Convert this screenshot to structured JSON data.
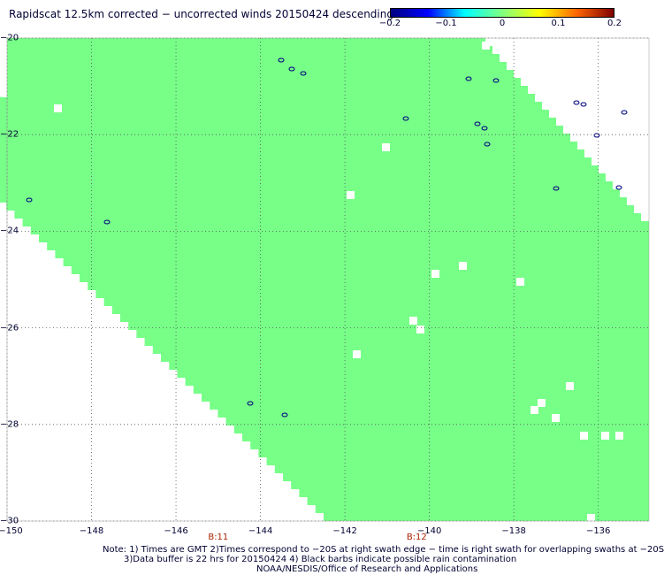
{
  "title": "Rapidscat 12.5km corrected − uncorrected winds 20150424 descending",
  "colorbar": {
    "labels": [
      "−0.2",
      "−0.1",
      "0",
      "0.1",
      "0.2"
    ],
    "values": [
      -0.2,
      -0.1,
      0,
      0.1,
      0.2
    ],
    "colors": [
      "#00007f",
      "#0000ff",
      "#00ffff",
      "#80ff80",
      "#ffff00",
      "#ff6600",
      "#7f0000"
    ]
  },
  "chart_data": {
    "type": "heatmap",
    "x_ticks": [
      "−150",
      "−148",
      "−146",
      "−144",
      "−142",
      "−140",
      "−138",
      "−136"
    ],
    "x_values": [
      -150,
      -148,
      -146,
      -144,
      -142,
      -140,
      -138,
      -136
    ],
    "y_ticks": [
      "−20",
      "−22",
      "−24",
      "−26",
      "−28",
      "−30"
    ],
    "y_values": [
      -20,
      -22,
      -24,
      -26,
      -28,
      -30
    ],
    "xlim": [
      -150,
      -134.8
    ],
    "ylim": [
      -30,
      -20
    ],
    "grid": true,
    "field_color": "#77ff88",
    "field_value": 0
  },
  "revolutions": [
    {
      "label": "B:11",
      "lon": -145.0
    },
    {
      "label": "B:12",
      "lon": -140.3
    }
  ],
  "notes": [
    "Note: 1) Times are GMT 2)Times correspond to −20S at right swath edge − time is right swath for overlapping swaths at −20S",
    "3)Data buffer is 22 hrs for 20150424 4) Black barbs indicate possible rain contamination",
    "NOAA/NESDIS/Office of Research and Applications"
  ]
}
